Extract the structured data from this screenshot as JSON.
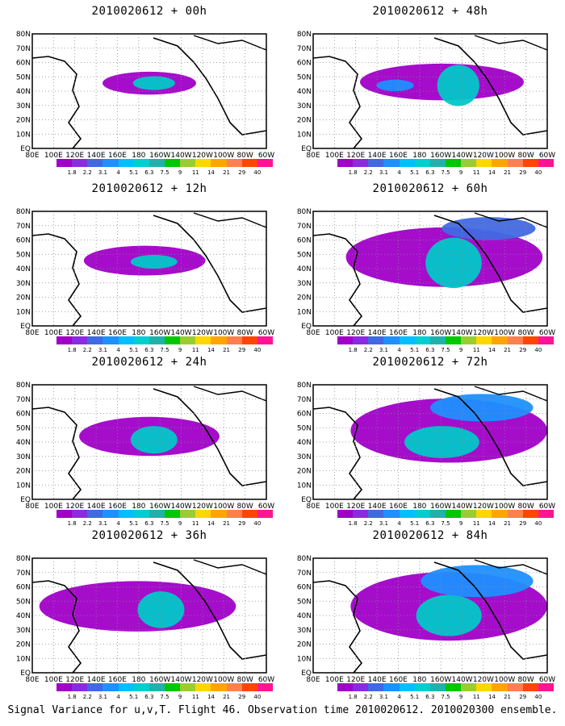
{
  "caption": "Signal Variance for u,v,T. Flight 46. Observation time 2010020612. 2010020300 ensemble.",
  "colorbar": {
    "colors": [
      "#a000c8",
      "#8a2be2",
      "#4169e1",
      "#1e90ff",
      "#00bfff",
      "#00ced1",
      "#20b2aa",
      "#00c800",
      "#9acd32",
      "#ffd700",
      "#ffa500",
      "#ff7f50",
      "#ff4500",
      "#ff1493"
    ],
    "ticks": [
      "1.8",
      "2.2",
      "3.1",
      "4",
      "5.1",
      "6.3",
      "7.5",
      "9",
      "11",
      "14",
      "21",
      "29",
      "40"
    ]
  },
  "lat_labels": [
    "80N",
    "70N",
    "60N",
    "50N",
    "40N",
    "30N",
    "20N",
    "10N",
    "EQ"
  ],
  "lon_labels": [
    "80E",
    "100E",
    "120E",
    "140E",
    "160E",
    "180",
    "160W",
    "140W",
    "120W",
    "100W",
    "80W",
    "60W"
  ],
  "panels": [
    {
      "id": "00h",
      "title_date": "2010020612",
      "title_lead": "+ 00h"
    },
    {
      "id": "48h",
      "title_date": "2010020612",
      "title_lead": "+ 48h"
    },
    {
      "id": "12h",
      "title_date": "2010020612",
      "title_lead": "+ 12h"
    },
    {
      "id": "60h",
      "title_date": "2010020612",
      "title_lead": "+ 60h"
    },
    {
      "id": "24h",
      "title_date": "2010020612",
      "title_lead": "+ 24h"
    },
    {
      "id": "72h",
      "title_date": "2010020612",
      "title_lead": "+ 72h"
    },
    {
      "id": "36h",
      "title_date": "2010020612",
      "title_lead": "+ 36h"
    },
    {
      "id": "84h",
      "title_date": "2010020612",
      "title_lead": "+ 84h"
    }
  ]
}
